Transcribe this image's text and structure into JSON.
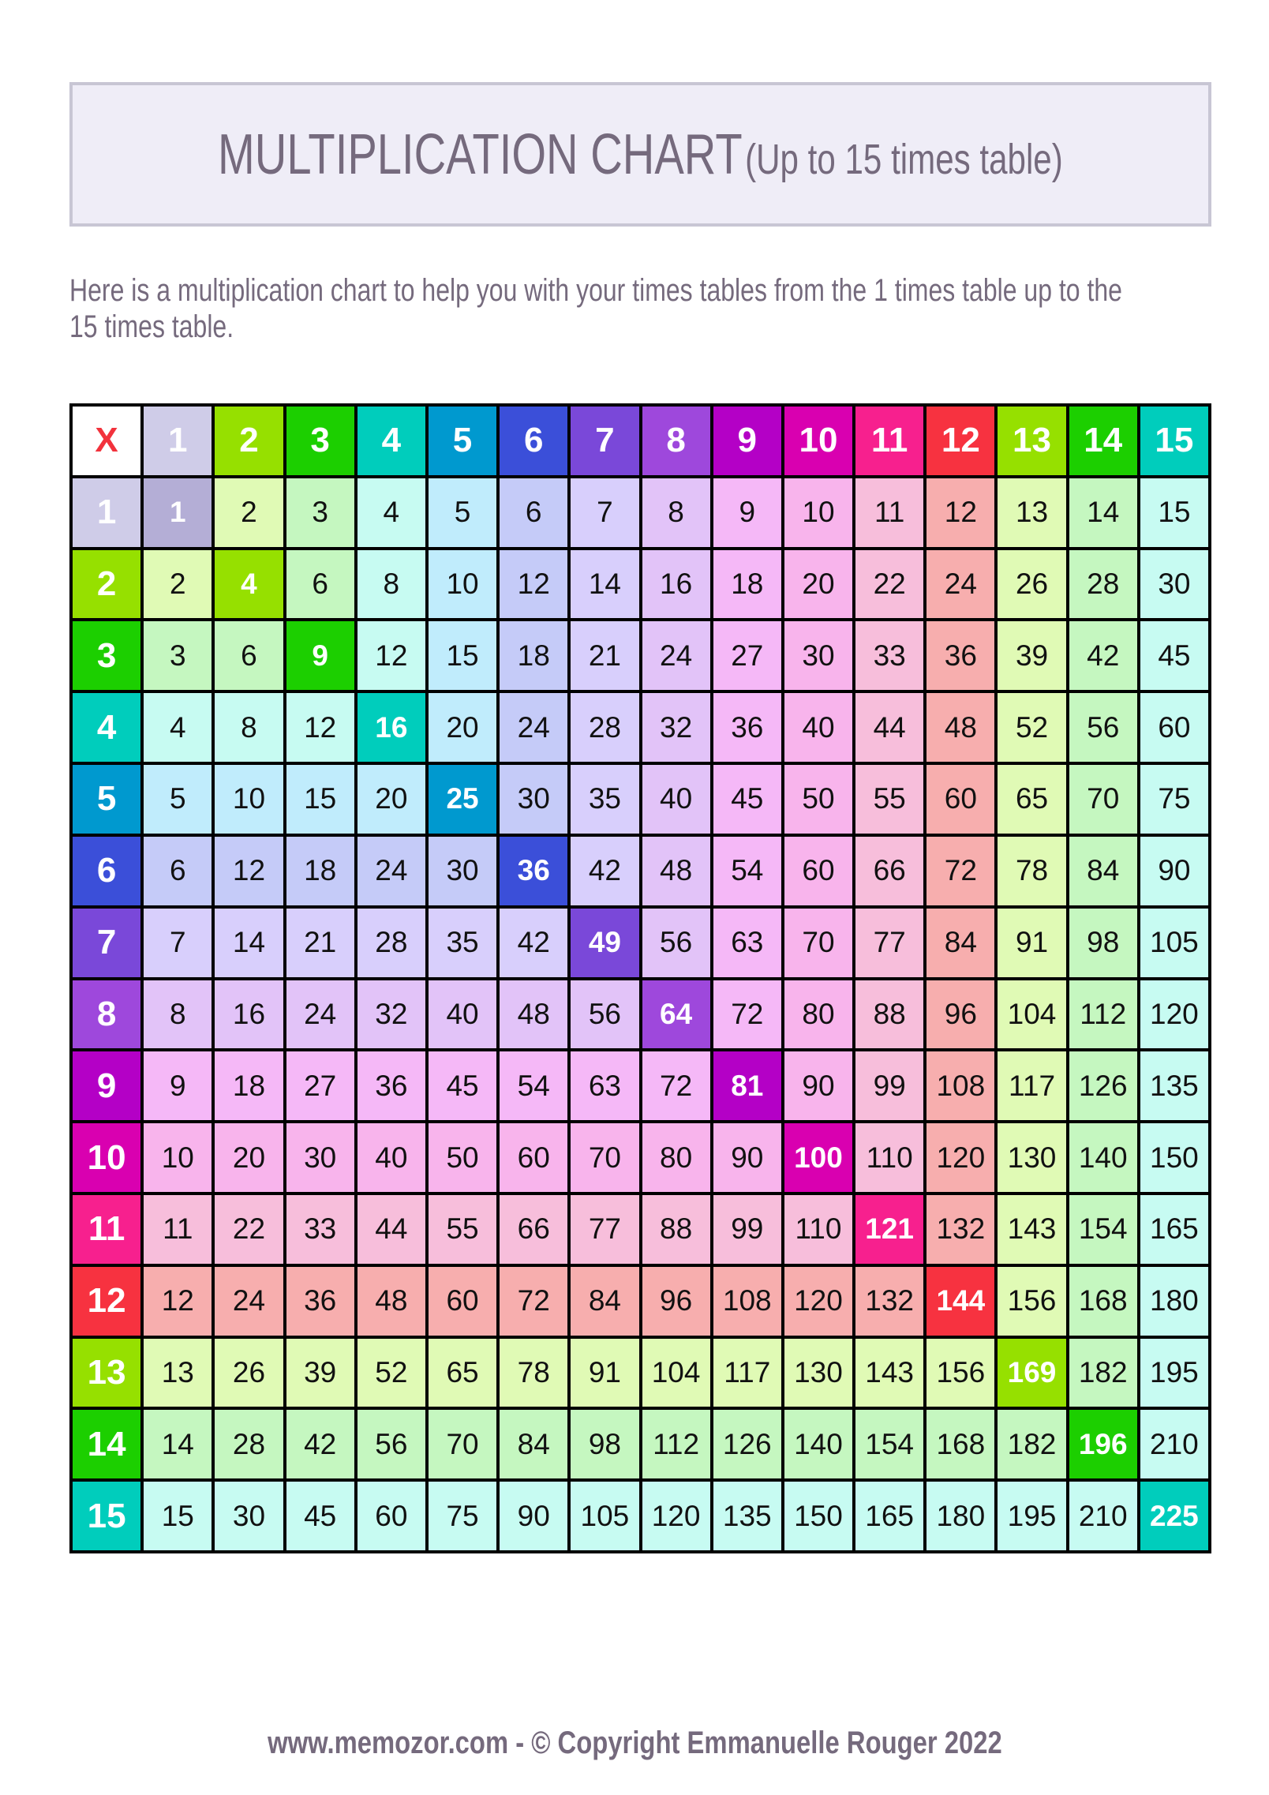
{
  "header": {
    "title": "MULTIPLICATION CHART",
    "subtitle": "(Up to 15 times table)"
  },
  "description": {
    "line1": "Here is a multiplication chart to help you with your times tables from the 1 times table up to the",
    "line2": "15 times table."
  },
  "footer": {
    "site": "www.memozor.com",
    "separator": " - ",
    "copyright": "© Copyright Emmanuelle Rouger 2022"
  },
  "chart_data": {
    "type": "table",
    "corner_label": "X",
    "column_headers": [
      1,
      2,
      3,
      4,
      5,
      6,
      7,
      8,
      9,
      10,
      11,
      12,
      13,
      14,
      15
    ],
    "row_headers": [
      1,
      2,
      3,
      4,
      5,
      6,
      7,
      8,
      9,
      10,
      11,
      12,
      13,
      14,
      15
    ],
    "rows": [
      [
        1,
        2,
        3,
        4,
        5,
        6,
        7,
        8,
        9,
        10,
        11,
        12,
        13,
        14,
        15
      ],
      [
        2,
        4,
        6,
        8,
        10,
        12,
        14,
        16,
        18,
        20,
        22,
        24,
        26,
        28,
        30
      ],
      [
        3,
        6,
        9,
        12,
        15,
        18,
        21,
        24,
        27,
        30,
        33,
        36,
        39,
        42,
        45
      ],
      [
        4,
        8,
        12,
        16,
        20,
        24,
        28,
        32,
        36,
        40,
        44,
        48,
        52,
        56,
        60
      ],
      [
        5,
        10,
        15,
        20,
        25,
        30,
        35,
        40,
        45,
        50,
        55,
        60,
        65,
        70,
        75
      ],
      [
        6,
        12,
        18,
        24,
        30,
        36,
        42,
        48,
        54,
        60,
        66,
        72,
        78,
        84,
        90
      ],
      [
        7,
        14,
        21,
        28,
        35,
        42,
        49,
        56,
        63,
        70,
        77,
        84,
        91,
        98,
        105
      ],
      [
        8,
        16,
        24,
        32,
        40,
        48,
        56,
        64,
        72,
        80,
        88,
        96,
        104,
        112,
        120
      ],
      [
        9,
        18,
        27,
        36,
        45,
        54,
        63,
        72,
        81,
        90,
        99,
        108,
        117,
        126,
        135
      ],
      [
        10,
        20,
        30,
        40,
        50,
        60,
        70,
        80,
        90,
        100,
        110,
        120,
        130,
        140,
        150
      ],
      [
        11,
        22,
        33,
        44,
        55,
        66,
        77,
        88,
        99,
        110,
        121,
        132,
        143,
        154,
        165
      ],
      [
        12,
        24,
        36,
        48,
        60,
        72,
        84,
        96,
        108,
        120,
        132,
        144,
        156,
        168,
        180
      ],
      [
        13,
        26,
        39,
        52,
        65,
        78,
        91,
        104,
        117,
        130,
        143,
        156,
        169,
        182,
        195
      ],
      [
        14,
        28,
        42,
        56,
        70,
        84,
        98,
        112,
        126,
        140,
        154,
        168,
        182,
        196,
        210
      ],
      [
        15,
        30,
        45,
        60,
        75,
        90,
        105,
        120,
        135,
        150,
        165,
        180,
        195,
        210,
        225
      ]
    ],
    "header_colors": [
      "#cfcce8",
      "#96e000",
      "#1ccf00",
      "#00cdbc",
      "#0099cf",
      "#3b4fd9",
      "#7a48d9",
      "#9e48dc",
      "#b400c6",
      "#d900b0",
      "#f7208e",
      "#f73240",
      "#96e000",
      "#1ccf00",
      "#00cdbc"
    ],
    "diagonal_colors": [
      "#b4aed6",
      "#96e000",
      "#1ccf00",
      "#00cdbc",
      "#0099cf",
      "#3b4fd9",
      "#7a48d9",
      "#9e48dc",
      "#b400c6",
      "#d900b0",
      "#f7208e",
      "#f73240",
      "#96e000",
      "#1ccf00",
      "#00cdbc"
    ],
    "cell_colors": [
      "#cfcce8",
      "#e0fab5",
      "#c5f7c0",
      "#c7fbf2",
      "#c0ecfc",
      "#c5cbf8",
      "#d8cffc",
      "#e2c3f8",
      "#f5b8f7",
      "#f8b4ec",
      "#f7bedb",
      "#f7aeae",
      "#e0fab5",
      "#c5f7c0",
      "#c7fbf2"
    ],
    "corner_color": "#f2323c"
  }
}
